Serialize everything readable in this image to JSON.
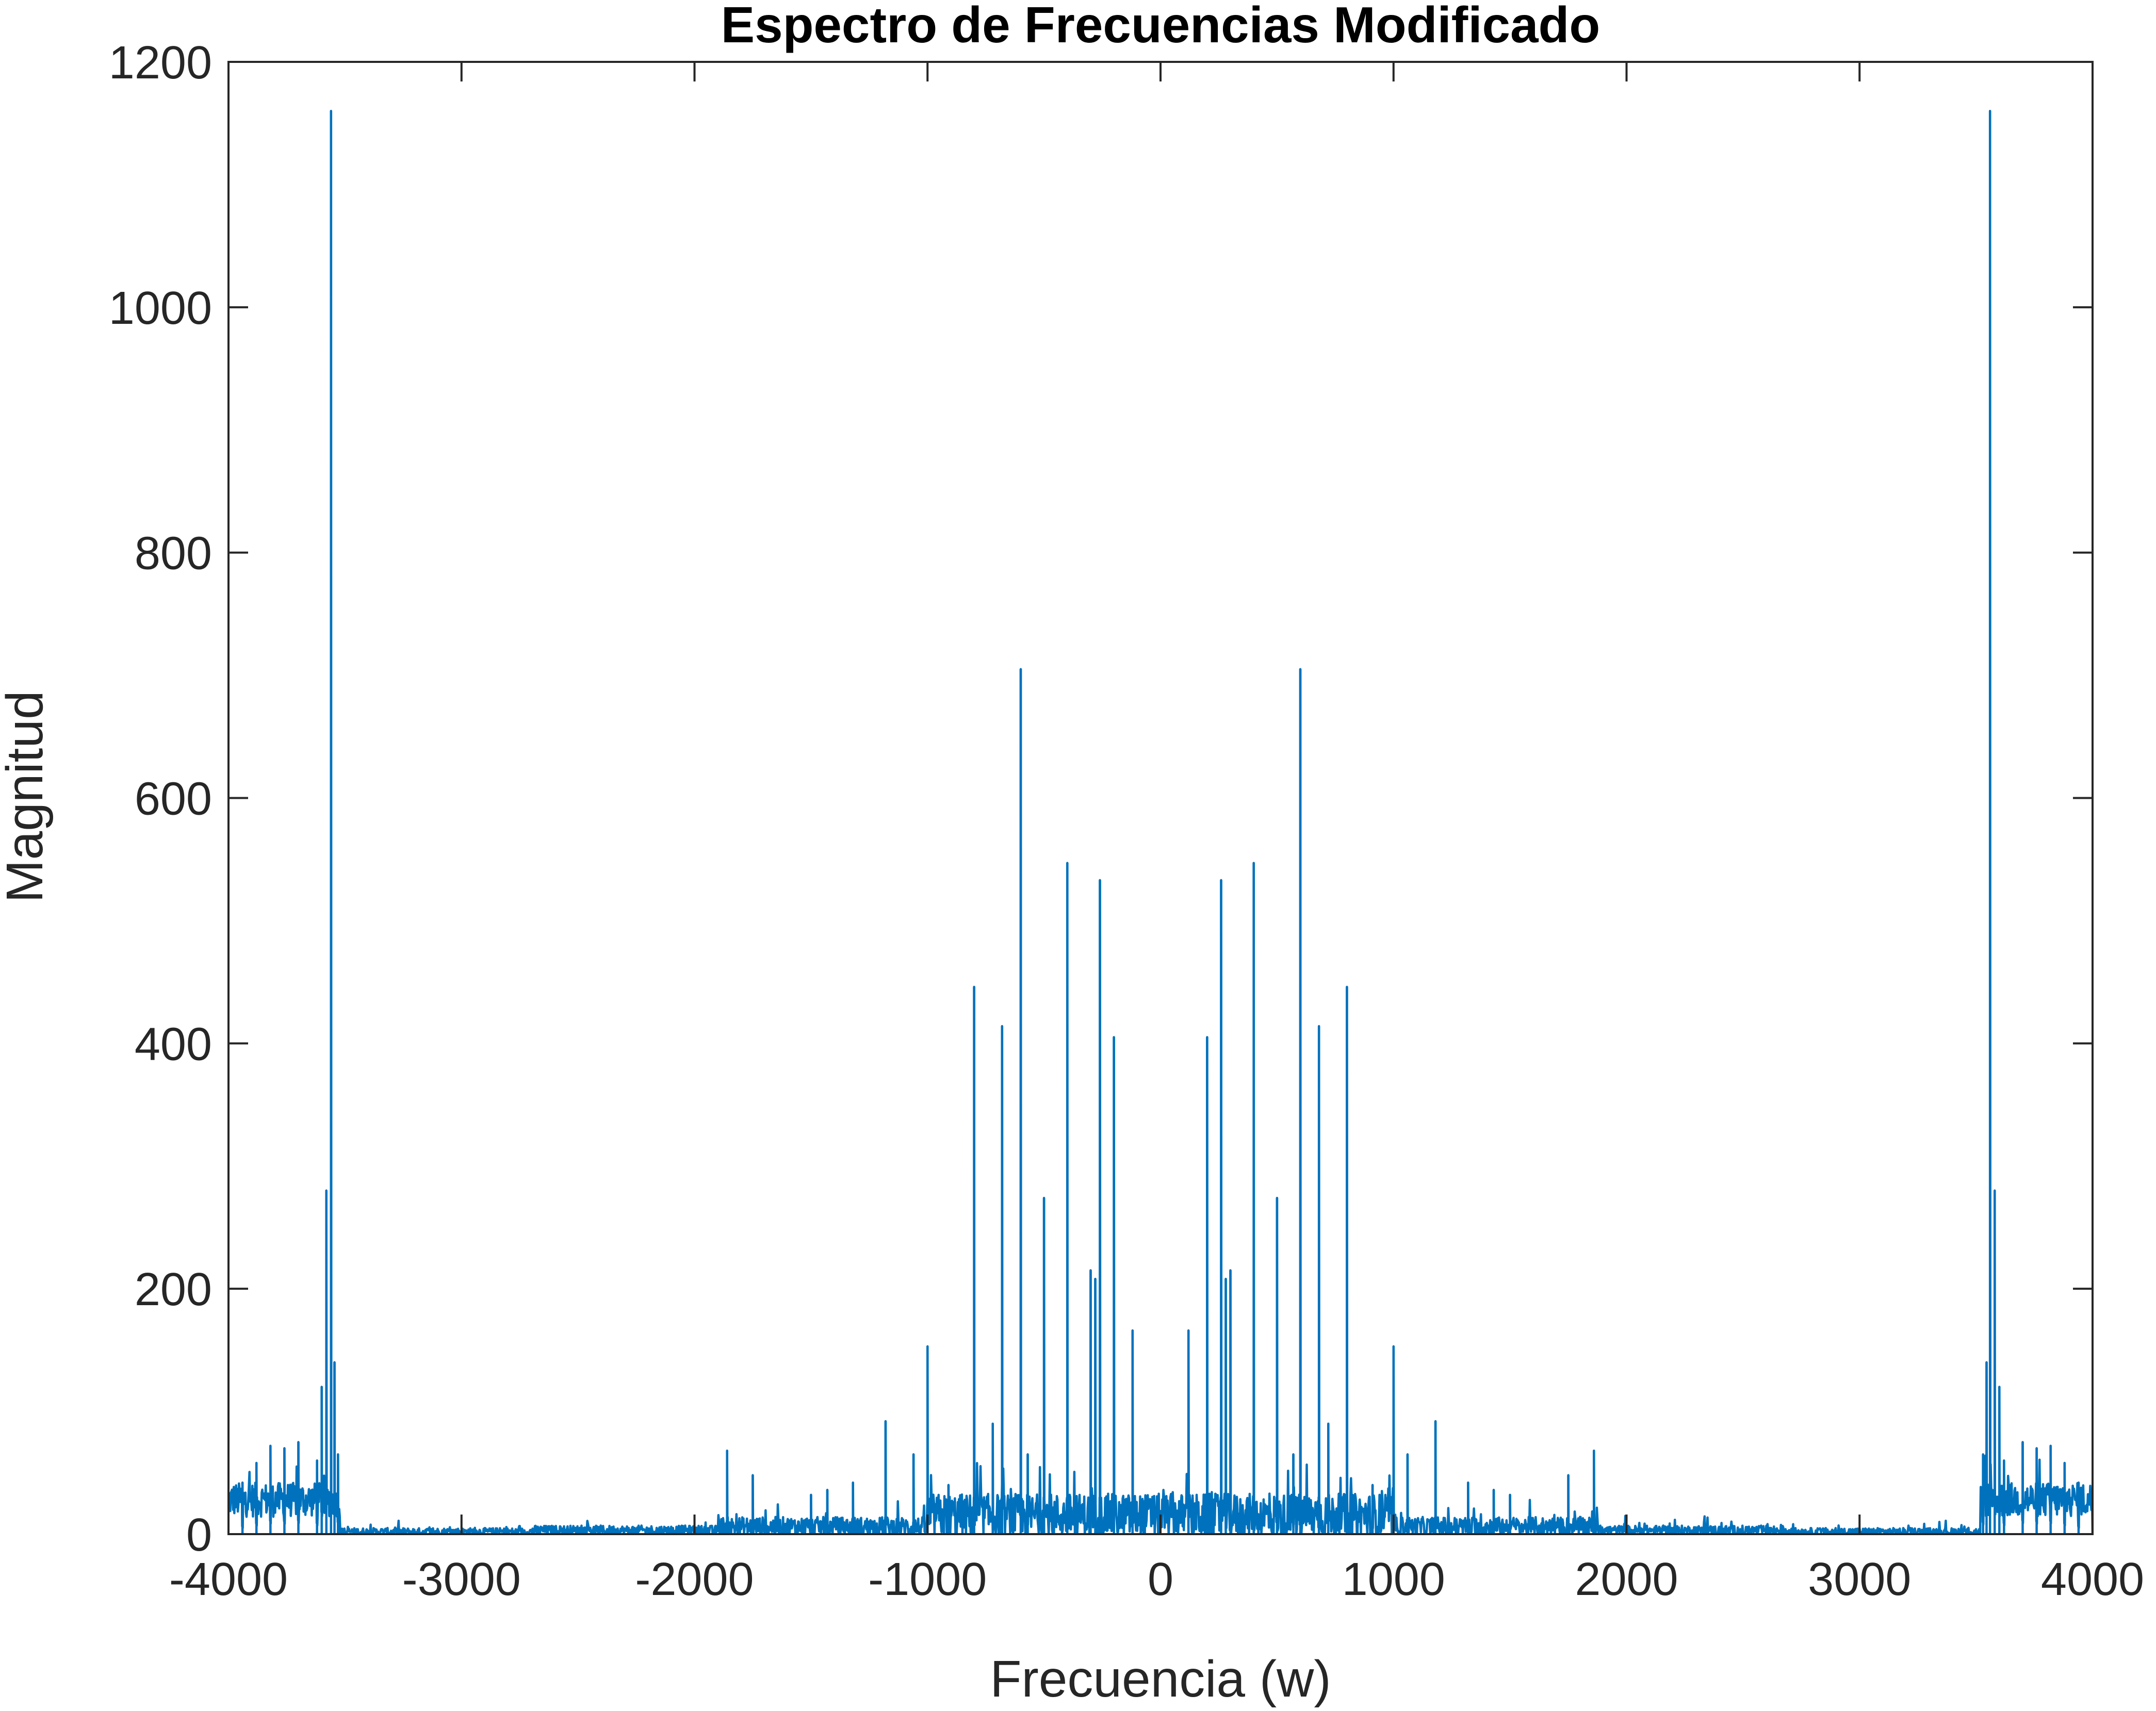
{
  "chart_data": {
    "type": "line",
    "title": "Espectro de Frecuencias Modificado",
    "xlabel": "Frecuencia (w)",
    "ylabel": "Magnitud",
    "xlim": [
      -4000,
      4000
    ],
    "ylim": [
      0,
      1200
    ],
    "xticks": [
      "-4000",
      "-3000",
      "-2000",
      "-1000",
      "0",
      "1000",
      "2000",
      "3000",
      "4000"
    ],
    "yticks": [
      "0",
      "200",
      "400",
      "600",
      "800",
      "1000",
      "1200"
    ],
    "grid": false,
    "legend": "none",
    "series": [
      {
        "color": "#0072BD",
        "baseline_noise": [
          {
            "x_from": -4000,
            "x_to": -3520,
            "level": 28,
            "jitter": 14
          },
          {
            "x_from": -3520,
            "x_to": -2700,
            "level": 2,
            "jitter": 3
          },
          {
            "x_from": -2700,
            "x_to": -1900,
            "level": 3,
            "jitter": 4
          },
          {
            "x_from": -1900,
            "x_to": -1000,
            "level": 6,
            "jitter": 8
          },
          {
            "x_from": -1000,
            "x_to": 1000,
            "level": 15,
            "jitter": 18
          },
          {
            "x_from": 1000,
            "x_to": 1900,
            "level": 6,
            "jitter": 8
          },
          {
            "x_from": 1900,
            "x_to": 2700,
            "level": 3,
            "jitter": 4
          },
          {
            "x_from": 2700,
            "x_to": 3520,
            "level": 2,
            "jitter": 3
          },
          {
            "x_from": 3520,
            "x_to": 4000,
            "level": 28,
            "jitter": 14
          }
        ],
        "peaks": [
          {
            "x": -3560,
            "y": 1160
          },
          {
            "x": -3580,
            "y": 280
          },
          {
            "x": -3545,
            "y": 140
          },
          {
            "x": -3600,
            "y": 120
          },
          {
            "x": -3530,
            "y": 65
          },
          {
            "x": -3620,
            "y": 60
          },
          {
            "x": -3700,
            "y": 75
          },
          {
            "x": -3760,
            "y": 70
          },
          {
            "x": -3820,
            "y": 72
          },
          {
            "x": -3880,
            "y": 58
          },
          {
            "x": -3940,
            "y": 42
          },
          {
            "x": -1860,
            "y": 68
          },
          {
            "x": -1750,
            "y": 48
          },
          {
            "x": -1500,
            "y": 32
          },
          {
            "x": -1430,
            "y": 36
          },
          {
            "x": -1320,
            "y": 42
          },
          {
            "x": -1180,
            "y": 92
          },
          {
            "x": -1060,
            "y": 65
          },
          {
            "x": -1000,
            "y": 153
          },
          {
            "x": -910,
            "y": 40
          },
          {
            "x": -800,
            "y": 446
          },
          {
            "x": -720,
            "y": 90
          },
          {
            "x": -680,
            "y": 414
          },
          {
            "x": -600,
            "y": 705
          },
          {
            "x": -570,
            "y": 65
          },
          {
            "x": -500,
            "y": 274
          },
          {
            "x": -400,
            "y": 547
          },
          {
            "x": -300,
            "y": 215
          },
          {
            "x": -280,
            "y": 208
          },
          {
            "x": -260,
            "y": 533
          },
          {
            "x": -200,
            "y": 405
          },
          {
            "x": -120,
            "y": 166
          },
          {
            "x": 120,
            "y": 166
          },
          {
            "x": 200,
            "y": 405
          },
          {
            "x": 260,
            "y": 533
          },
          {
            "x": 280,
            "y": 208
          },
          {
            "x": 300,
            "y": 215
          },
          {
            "x": 400,
            "y": 547
          },
          {
            "x": 500,
            "y": 274
          },
          {
            "x": 570,
            "y": 65
          },
          {
            "x": 600,
            "y": 705
          },
          {
            "x": 680,
            "y": 414
          },
          {
            "x": 720,
            "y": 90
          },
          {
            "x": 800,
            "y": 446
          },
          {
            "x": 910,
            "y": 40
          },
          {
            "x": 1000,
            "y": 153
          },
          {
            "x": 1060,
            "y": 65
          },
          {
            "x": 1180,
            "y": 92
          },
          {
            "x": 1320,
            "y": 42
          },
          {
            "x": 1430,
            "y": 36
          },
          {
            "x": 1500,
            "y": 32
          },
          {
            "x": 1750,
            "y": 48
          },
          {
            "x": 1860,
            "y": 68
          },
          {
            "x": 3530,
            "y": 65
          },
          {
            "x": 3545,
            "y": 140
          },
          {
            "x": 3560,
            "y": 1160
          },
          {
            "x": 3580,
            "y": 280
          },
          {
            "x": 3600,
            "y": 120
          },
          {
            "x": 3620,
            "y": 60
          },
          {
            "x": 3700,
            "y": 75
          },
          {
            "x": 3760,
            "y": 70
          },
          {
            "x": 3820,
            "y": 72
          },
          {
            "x": 3880,
            "y": 58
          },
          {
            "x": 3940,
            "y": 42
          }
        ]
      }
    ]
  }
}
